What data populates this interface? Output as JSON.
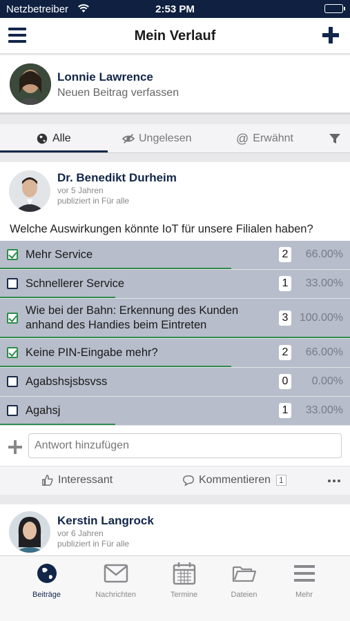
{
  "status_bar": {
    "carrier": "Netzbetreiber",
    "time": "2:53 PM"
  },
  "header": {
    "title": "Mein Verlauf"
  },
  "composer": {
    "user_name": "Lonnie Lawrence",
    "prompt": "Neuen Beitrag verfassen"
  },
  "filter_tabs": [
    {
      "label": "Alle",
      "icon": "globe-icon",
      "active": true
    },
    {
      "label": "Ungelesen",
      "icon": "eye-slash-icon",
      "active": false
    },
    {
      "label": "Erwähnt",
      "icon": "at-icon",
      "active": false
    }
  ],
  "post": {
    "author": "Dr. Benedikt Durheim",
    "time_ago": "vor 5 Jahren",
    "visibility": "publiziert in Für alle",
    "question": "Welche Auswirkungen könnte IoT für unsere Filialen haben?",
    "options": [
      {
        "label": "Mehr Service",
        "checked": true,
        "count": "2",
        "percent": "66.00%",
        "fraction": 0.66
      },
      {
        "label": "Schnellerer Service",
        "checked": false,
        "count": "1",
        "percent": "33.00%",
        "fraction": 0.33
      },
      {
        "label_line1": "Wie bei der Bahn: Erkennung des Kunden",
        "label_line2": "anhand des Handies beim Eintreten",
        "checked": true,
        "count": "3",
        "percent": "100.00%",
        "fraction": 1.0
      },
      {
        "label": "Keine PIN-Eingabe mehr?",
        "checked": true,
        "count": "2",
        "percent": "66.00%",
        "fraction": 0.66
      },
      {
        "label": "Agabshsjsbsvss",
        "checked": false,
        "count": "0",
        "percent": "0.00%",
        "fraction": 0.0
      },
      {
        "label": "Agahsj",
        "checked": false,
        "count": "1",
        "percent": "33.00%",
        "fraction": 0.33
      }
    ],
    "reply_placeholder": "Antwort hinzufügen",
    "actions": {
      "like_label": "Interessant",
      "comment_label": "Kommentieren",
      "comment_count": "1"
    }
  },
  "post2": {
    "author": "Kerstin Langrock",
    "time_ago": "vor 6 Jahren",
    "visibility": "publiziert in Für alle"
  },
  "tabbar": [
    {
      "label": "Beiträge",
      "icon": "globe-icon",
      "active": true
    },
    {
      "label": "Nachrichten",
      "icon": "envelope-icon",
      "active": false
    },
    {
      "label": "Termine",
      "icon": "calendar-icon",
      "active": false
    },
    {
      "label": "Dateien",
      "icon": "folder-icon",
      "active": false
    },
    {
      "label": "Mehr",
      "icon": "menu-icon",
      "active": false
    }
  ],
  "colors": {
    "primary": "#12264a",
    "poll_bg": "#b7bdca",
    "poll_bar": "#2e8b4b"
  }
}
